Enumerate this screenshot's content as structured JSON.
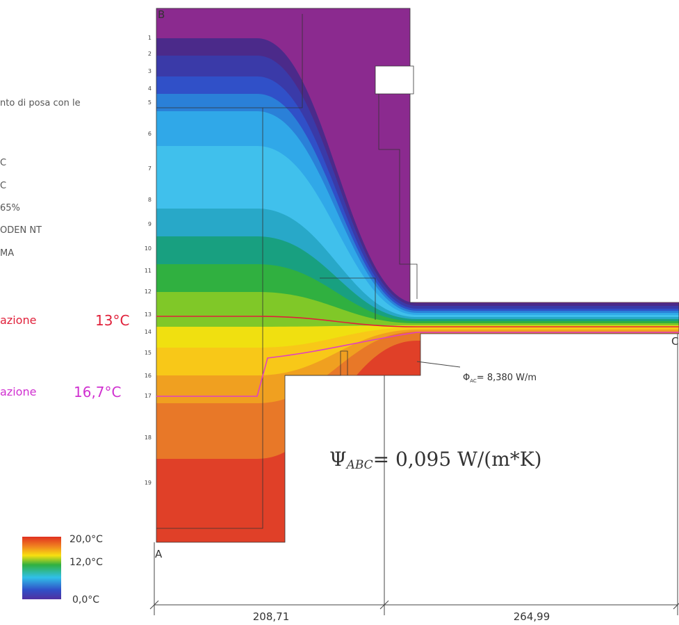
{
  "left_notes": [
    "nto di posa con le",
    "C",
    "C",
    "65%",
    "ODEN NT",
    "MA"
  ],
  "isotherm_13": {
    "text": "azione",
    "temperature": "13°C"
  },
  "isotherm_167": {
    "text": "azione",
    "temperature": "16,7°C"
  },
  "legend": {
    "max": "20,0°C",
    "mid": "12,0°C",
    "min": "0,0°C"
  },
  "corners": {
    "a": "A",
    "b": "B",
    "c": "C"
  },
  "row_numbers": [
    "1",
    "2",
    "3",
    "4",
    "5",
    "6",
    "7",
    "8",
    "9",
    "10",
    "11",
    "12",
    "13",
    "14",
    "15",
    "16",
    "17",
    "18",
    "19"
  ],
  "phi": {
    "symbol": "Φ",
    "subscript": "AC",
    "value": "= 8,380 W/m"
  },
  "psi": {
    "symbol": "Ψ",
    "subscript": "ABC",
    "value": "= 0,095 W/(m*K)"
  },
  "dimensions": {
    "left": "208,71",
    "right": "264,99"
  }
}
